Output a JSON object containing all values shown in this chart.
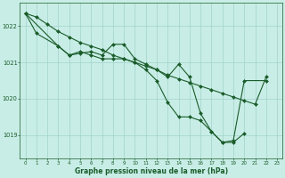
{
  "title": "Graphe pression niveau de la mer (hPa)",
  "bg_color": "#c8ede6",
  "grid_color": "#a0d4c8",
  "line_color": "#1a5c2a",
  "marker": "D",
  "markersize": 2.0,
  "linewidth": 0.8,
  "xlim_min": -0.5,
  "xlim_max": 23.5,
  "ylim_min": 1018.35,
  "ylim_max": 1022.65,
  "yticks": [
    1019,
    1020,
    1021,
    1022
  ],
  "xticks": [
    0,
    1,
    2,
    3,
    4,
    5,
    6,
    7,
    8,
    9,
    10,
    11,
    12,
    13,
    14,
    15,
    16,
    17,
    18,
    19,
    20,
    21,
    22,
    23
  ],
  "series1_x": [
    0,
    1,
    2,
    3,
    4,
    5,
    6,
    7,
    8,
    9,
    10,
    11,
    12,
    13,
    14,
    15,
    16,
    17,
    18,
    19,
    20,
    21,
    22
  ],
  "series1_y": [
    1022.35,
    1022.25,
    1022.05,
    1021.85,
    1021.7,
    1021.55,
    1021.45,
    1021.35,
    1021.2,
    1021.1,
    1021.0,
    1020.9,
    1020.8,
    1020.65,
    1020.55,
    1020.45,
    1020.35,
    1020.25,
    1020.15,
    1020.05,
    1019.95,
    1019.85,
    1020.6
  ],
  "series2_x": [
    0,
    1,
    3,
    4,
    5,
    6,
    7,
    8,
    9,
    10,
    11,
    12,
    13,
    14,
    15,
    16,
    17,
    18,
    19,
    20
  ],
  "series2_y": [
    1022.35,
    1021.8,
    1021.45,
    1021.2,
    1021.25,
    1021.3,
    1021.2,
    1021.5,
    1021.5,
    1021.1,
    1020.95,
    1020.8,
    1020.6,
    1020.95,
    1020.6,
    1019.6,
    1019.1,
    1018.8,
    1018.8,
    1019.05
  ],
  "series3_x": [
    0,
    3,
    4,
    5,
    6,
    7,
    8,
    9,
    10,
    11,
    12,
    13,
    14,
    15,
    16,
    17,
    18,
    19,
    20,
    22
  ],
  "series3_y": [
    1022.35,
    1021.45,
    1021.2,
    1021.3,
    1021.2,
    1021.1,
    1021.1,
    1021.1,
    1021.0,
    1020.8,
    1020.5,
    1019.9,
    1019.5,
    1019.5,
    1019.4,
    1019.1,
    1018.8,
    1018.85,
    1020.5,
    1020.5
  ]
}
